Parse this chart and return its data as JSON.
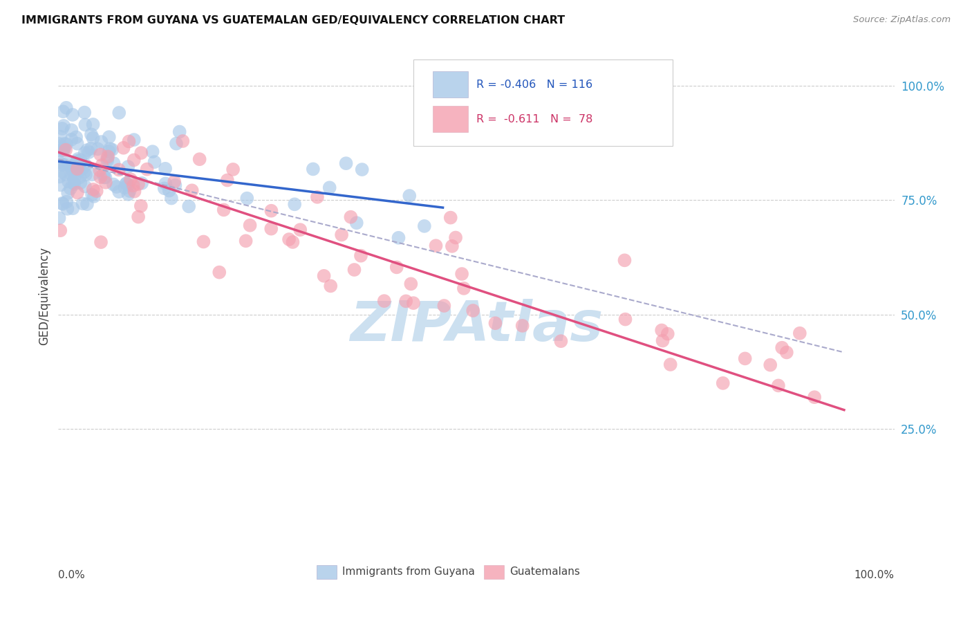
{
  "title": "IMMIGRANTS FROM GUYANA VS GUATEMALAN GED/EQUIVALENCY CORRELATION CHART",
  "source": "Source: ZipAtlas.com",
  "ylabel": "GED/Equivalency",
  "legend_label1": "Immigrants from Guyana",
  "legend_label2": "Guatemalans",
  "blue_color": "#a8c8e8",
  "blue_line_color": "#3366cc",
  "pink_color": "#f4a0b0",
  "pink_line_color": "#e05080",
  "dashed_line_color": "#aaaacc",
  "watermark_text": "ZIPAtlas",
  "watermark_color": "#cce0f0",
  "background_color": "#ffffff",
  "grid_color": "#cccccc",
  "y_ticks": [
    0.25,
    0.5,
    0.75,
    1.0
  ],
  "y_tick_labels": [
    "25.0%",
    "50.0%",
    "75.0%",
    "100.0%"
  ],
  "blue_intercept": 0.835,
  "blue_slope": -0.22,
  "pink_intercept": 0.855,
  "pink_slope": -0.6,
  "dashed_intercept": 0.84,
  "dashed_slope": -0.45
}
